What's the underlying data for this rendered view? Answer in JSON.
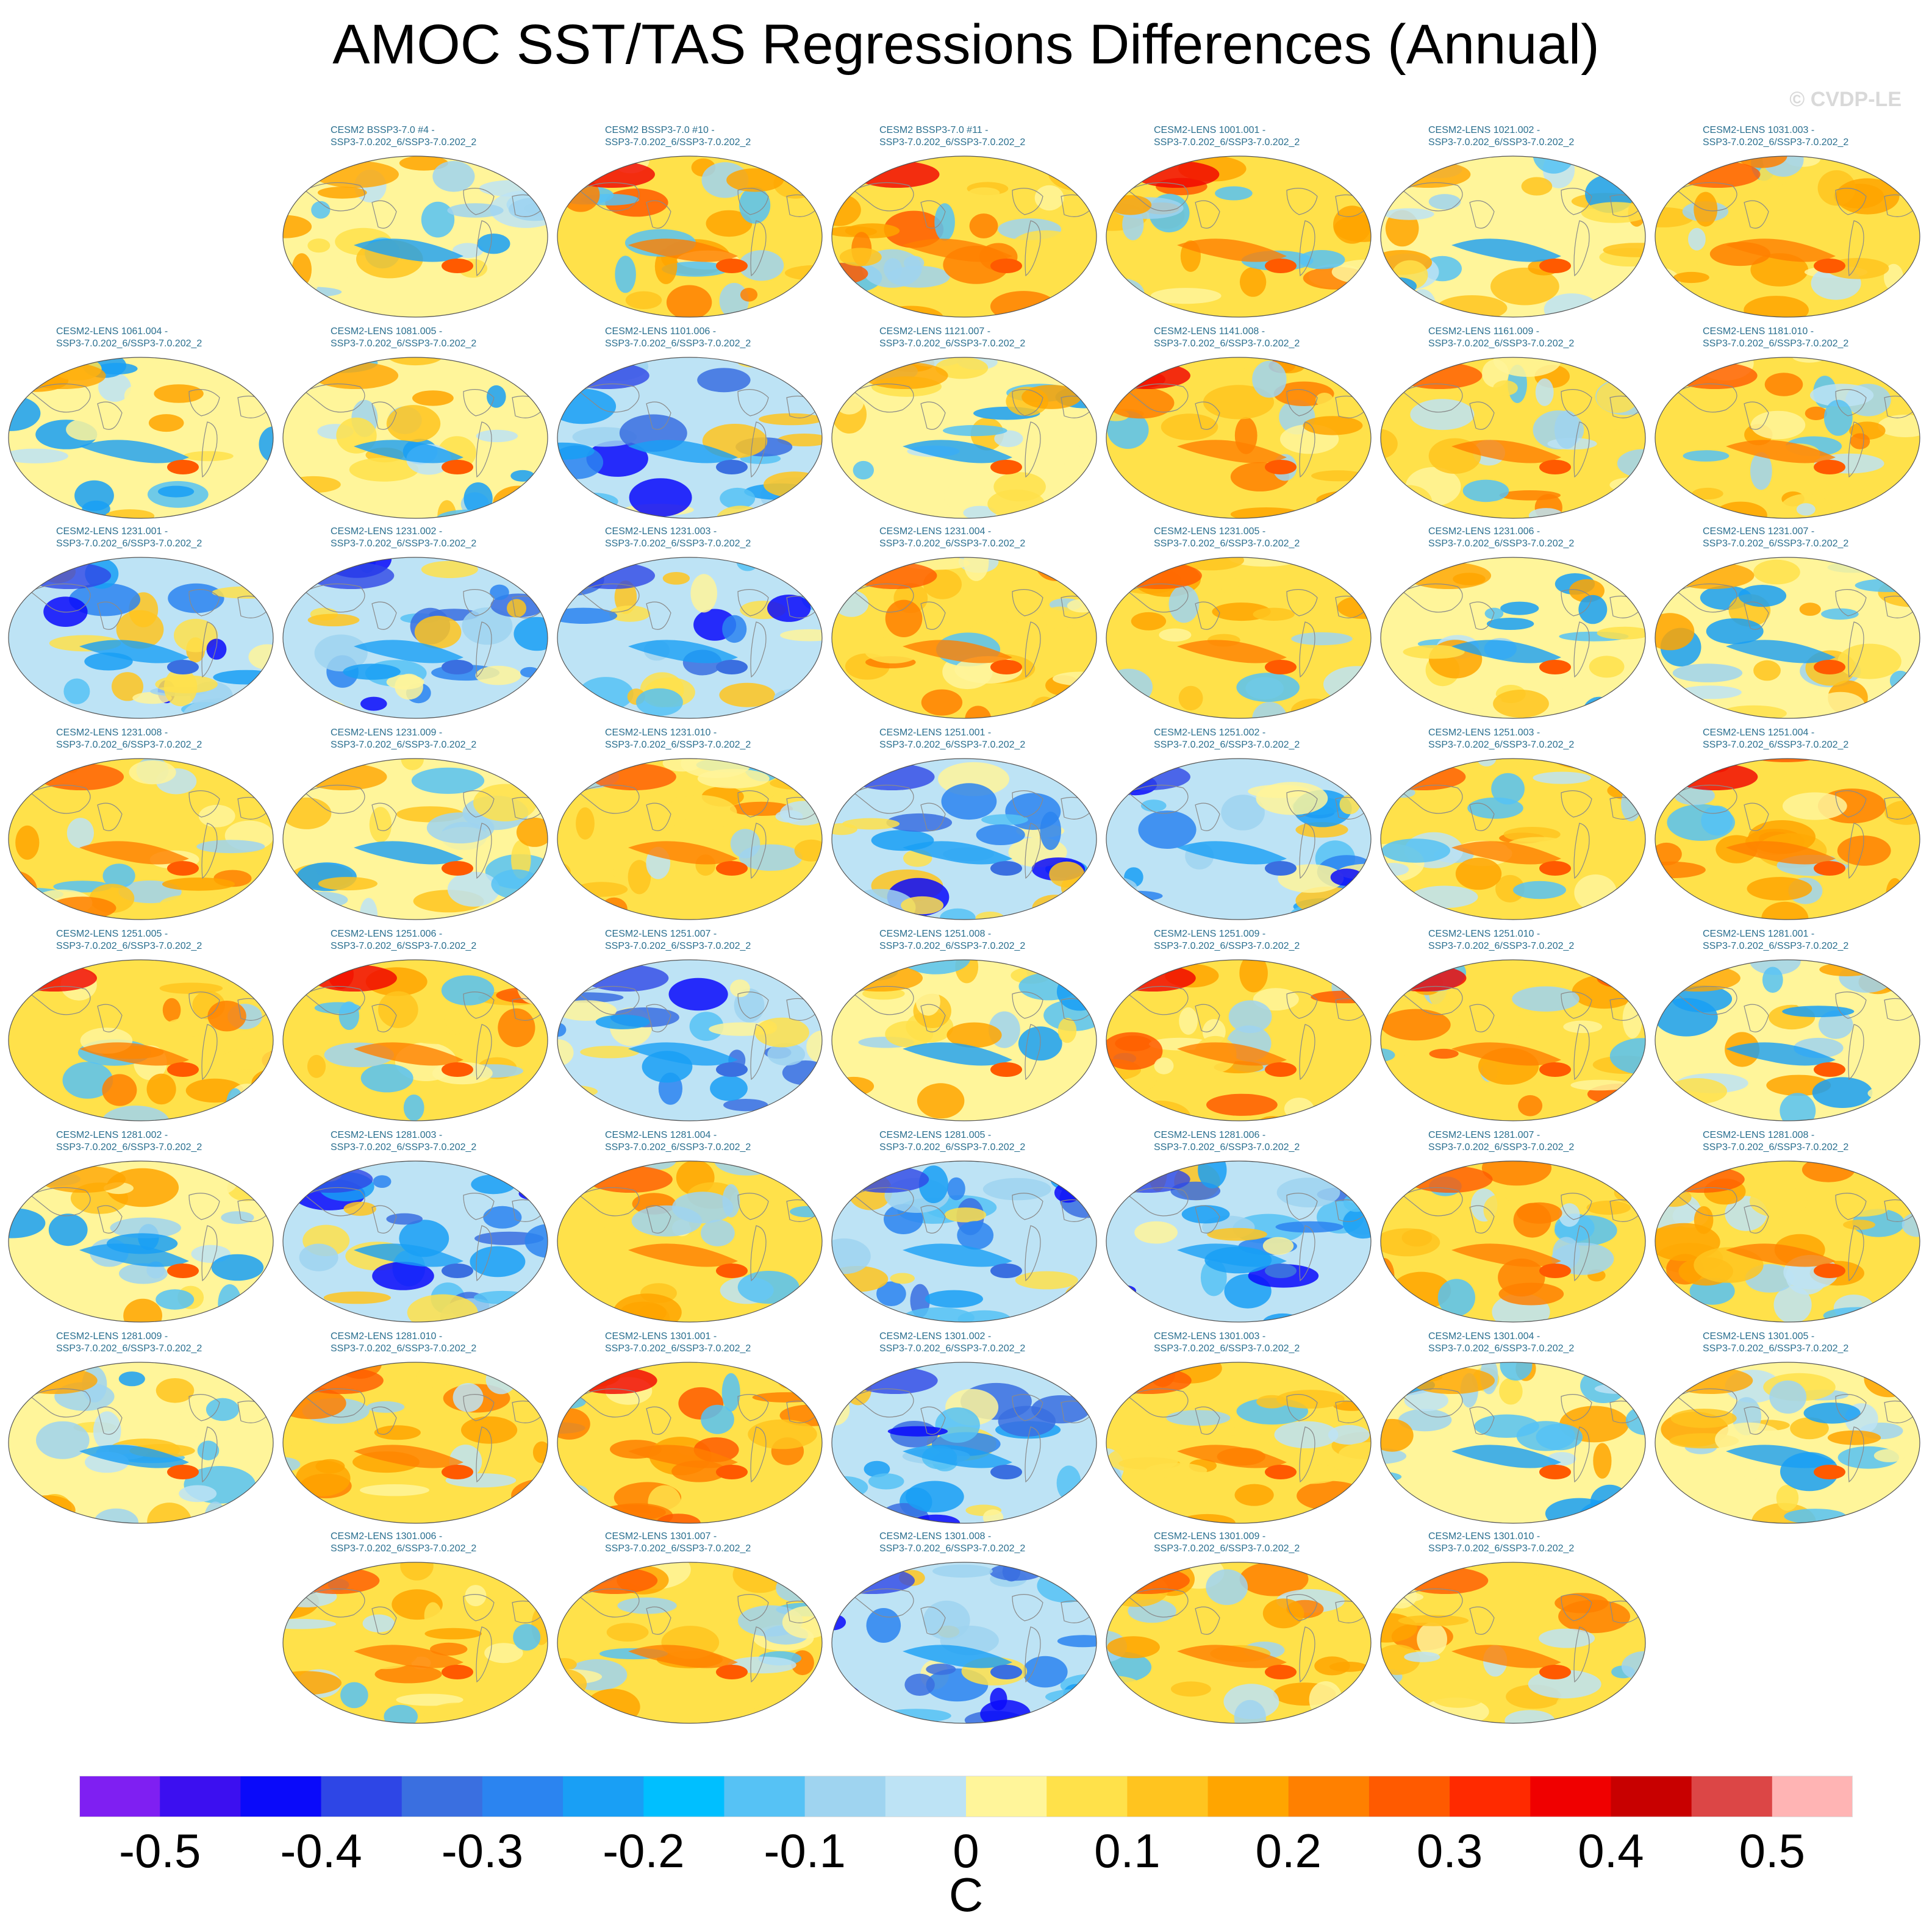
{
  "title": "AMOC SST/TAS Regressions Differences (Annual)",
  "copyright": "© CVDP-LE",
  "chart_data": {
    "type": "heatmap",
    "projection": "Robinson (global maps)",
    "variable_units": "C",
    "colorbar": {
      "ticks": [
        "-0.5",
        "-0.4",
        "-0.3",
        "-0.2",
        "-0.1",
        "0",
        "0.1",
        "0.2",
        "0.3",
        "0.4",
        "0.5"
      ],
      "levels": [
        -0.55,
        -0.5,
        -0.45,
        -0.4,
        -0.35,
        -0.3,
        -0.25,
        -0.2,
        -0.15,
        -0.1,
        -0.05,
        0,
        0.05,
        0.1,
        0.15,
        0.2,
        0.25,
        0.3,
        0.35,
        0.4,
        0.45,
        0.5,
        0.55
      ],
      "colors": [
        "#7f1ff2",
        "#3c0ff0",
        "#0a0afa",
        "#2e46e6",
        "#3a6fe0",
        "#2b84f0",
        "#199ff5",
        "#00bfff",
        "#56c2f5",
        "#9fd4f0",
        "#bde3f5",
        "#fff59a",
        "#ffe14a",
        "#ffc41f",
        "#ffa500",
        "#ff8000",
        "#ff5a00",
        "#ff2a00",
        "#f00000",
        "#c80000",
        "#dc4646",
        "#ffb4b4"
      ]
    },
    "panels": [
      {
        "l1": "CESM2 BSSP3-7.0 #4 -",
        "l2": "SSP3-7.0.202_6/SSP3-7.0.202_2",
        "pattern": 1
      },
      {
        "l1": "CESM2 BSSP3-7.0 #10 -",
        "l2": "SSP3-7.0.202_6/SSP3-7.0.202_2",
        "pattern": 2
      },
      {
        "l1": "CESM2 BSSP3-7.0 #11 -",
        "l2": "SSP3-7.0.202_6/SSP3-7.0.202_2",
        "pattern": 2
      },
      {
        "l1": "CESM2-LENS 1001.001 -",
        "l2": "SSP3-7.0.202_6/SSP3-7.0.202_2",
        "pattern": 2
      },
      {
        "l1": "CESM2-LENS 1021.002 -",
        "l2": "SSP3-7.0.202_6/SSP3-7.0.202_2",
        "pattern": 1
      },
      {
        "l1": "CESM2-LENS 1031.003 -",
        "l2": "SSP3-7.0.202_6/SSP3-7.0.202_2",
        "pattern": 3
      },
      {
        "l1": "CESM2-LENS 1061.004 -",
        "l2": "SSP3-7.0.202_6/SSP3-7.0.202_2",
        "pattern": 1
      },
      {
        "l1": "CESM2-LENS 1081.005 -",
        "l2": "SSP3-7.0.202_6/SSP3-7.0.202_2",
        "pattern": 1
      },
      {
        "l1": "CESM2-LENS 1101.006 -",
        "l2": "SSP3-7.0.202_6/SSP3-7.0.202_2",
        "pattern": 0
      },
      {
        "l1": "CESM2-LENS 1121.007 -",
        "l2": "SSP3-7.0.202_6/SSP3-7.0.202_2",
        "pattern": 1
      },
      {
        "l1": "CESM2-LENS 1141.008 -",
        "l2": "SSP3-7.0.202_6/SSP3-7.0.202_2",
        "pattern": 2
      },
      {
        "l1": "CESM2-LENS 1161.009 -",
        "l2": "SSP3-7.0.202_6/SSP3-7.0.202_2",
        "pattern": 3
      },
      {
        "l1": "CESM2-LENS 1181.010 -",
        "l2": "SSP3-7.0.202_6/SSP3-7.0.202_2",
        "pattern": 3
      },
      {
        "l1": "CESM2-LENS 1231.001 -",
        "l2": "SSP3-7.0.202_6/SSP3-7.0.202_2",
        "pattern": 0
      },
      {
        "l1": "CESM2-LENS 1231.002 -",
        "l2": "SSP3-7.0.202_6/SSP3-7.0.202_2",
        "pattern": 0
      },
      {
        "l1": "CESM2-LENS 1231.003 -",
        "l2": "SSP3-7.0.202_6/SSP3-7.0.202_2",
        "pattern": 0
      },
      {
        "l1": "CESM2-LENS 1231.004 -",
        "l2": "SSP3-7.0.202_6/SSP3-7.0.202_2",
        "pattern": 3
      },
      {
        "l1": "CESM2-LENS 1231.005 -",
        "l2": "SSP3-7.0.202_6/SSP3-7.0.202_2",
        "pattern": 3
      },
      {
        "l1": "CESM2-LENS 1231.006 -",
        "l2": "SSP3-7.0.202_6/SSP3-7.0.202_2",
        "pattern": 1
      },
      {
        "l1": "CESM2-LENS 1231.007 -",
        "l2": "SSP3-7.0.202_6/SSP3-7.0.202_2",
        "pattern": 1
      },
      {
        "l1": "CESM2-LENS 1231.008 -",
        "l2": "SSP3-7.0.202_6/SSP3-7.0.202_2",
        "pattern": 3
      },
      {
        "l1": "CESM2-LENS 1231.009 -",
        "l2": "SSP3-7.0.202_6/SSP3-7.0.202_2",
        "pattern": 1
      },
      {
        "l1": "CESM2-LENS 1231.010 -",
        "l2": "SSP3-7.0.202_6/SSP3-7.0.202_2",
        "pattern": 3
      },
      {
        "l1": "CESM2-LENS 1251.001 -",
        "l2": "SSP3-7.0.202_6/SSP3-7.0.202_2",
        "pattern": 0
      },
      {
        "l1": "CESM2-LENS 1251.002 -",
        "l2": "SSP3-7.0.202_6/SSP3-7.0.202_2",
        "pattern": 0
      },
      {
        "l1": "CESM2-LENS 1251.003 -",
        "l2": "SSP3-7.0.202_6/SSP3-7.0.202_2",
        "pattern": 3
      },
      {
        "l1": "CESM2-LENS 1251.004 -",
        "l2": "SSP3-7.0.202_6/SSP3-7.0.202_2",
        "pattern": 2
      },
      {
        "l1": "CESM2-LENS 1251.005 -",
        "l2": "SSP3-7.0.202_6/SSP3-7.0.202_2",
        "pattern": 2
      },
      {
        "l1": "CESM2-LENS 1251.006 -",
        "l2": "SSP3-7.0.202_6/SSP3-7.0.202_2",
        "pattern": 2
      },
      {
        "l1": "CESM2-LENS 1251.007 -",
        "l2": "SSP3-7.0.202_6/SSP3-7.0.202_2",
        "pattern": 0
      },
      {
        "l1": "CESM2-LENS 1251.008 -",
        "l2": "SSP3-7.0.202_6/SSP3-7.0.202_2",
        "pattern": 1
      },
      {
        "l1": "CESM2-LENS 1251.009 -",
        "l2": "SSP3-7.0.202_6/SSP3-7.0.202_2",
        "pattern": 2
      },
      {
        "l1": "CESM2-LENS 1251.010 -",
        "l2": "SSP3-7.0.202_6/SSP3-7.0.202_2",
        "pattern": 2
      },
      {
        "l1": "CESM2-LENS 1281.001 -",
        "l2": "SSP3-7.0.202_6/SSP3-7.0.202_2",
        "pattern": 1
      },
      {
        "l1": "CESM2-LENS 1281.002 -",
        "l2": "SSP3-7.0.202_6/SSP3-7.0.202_2",
        "pattern": 1
      },
      {
        "l1": "CESM2-LENS 1281.003 -",
        "l2": "SSP3-7.0.202_6/SSP3-7.0.202_2",
        "pattern": 0
      },
      {
        "l1": "CESM2-LENS 1281.004 -",
        "l2": "SSP3-7.0.202_6/SSP3-7.0.202_2",
        "pattern": 3
      },
      {
        "l1": "CESM2-LENS 1281.005 -",
        "l2": "SSP3-7.0.202_6/SSP3-7.0.202_2",
        "pattern": 0
      },
      {
        "l1": "CESM2-LENS 1281.006 -",
        "l2": "SSP3-7.0.202_6/SSP3-7.0.202_2",
        "pattern": 0
      },
      {
        "l1": "CESM2-LENS 1281.007 -",
        "l2": "SSP3-7.0.202_6/SSP3-7.0.202_2",
        "pattern": 3
      },
      {
        "l1": "CESM2-LENS 1281.008 -",
        "l2": "SSP3-7.0.202_6/SSP3-7.0.202_2",
        "pattern": 3
      },
      {
        "l1": "CESM2-LENS 1281.009 -",
        "l2": "SSP3-7.0.202_6/SSP3-7.0.202_2",
        "pattern": 1
      },
      {
        "l1": "CESM2-LENS 1281.010 -",
        "l2": "SSP3-7.0.202_6/SSP3-7.0.202_2",
        "pattern": 3
      },
      {
        "l1": "CESM2-LENS 1301.001 -",
        "l2": "SSP3-7.0.202_6/SSP3-7.0.202_2",
        "pattern": 2
      },
      {
        "l1": "CESM2-LENS 1301.002 -",
        "l2": "SSP3-7.0.202_6/SSP3-7.0.202_2",
        "pattern": 0
      },
      {
        "l1": "CESM2-LENS 1301.003 -",
        "l2": "SSP3-7.0.202_6/SSP3-7.0.202_2",
        "pattern": 3
      },
      {
        "l1": "CESM2-LENS 1301.004 -",
        "l2": "SSP3-7.0.202_6/SSP3-7.0.202_2",
        "pattern": 1
      },
      {
        "l1": "CESM2-LENS 1301.005 -",
        "l2": "SSP3-7.0.202_6/SSP3-7.0.202_2",
        "pattern": 1
      },
      {
        "l1": "CESM2-LENS 1301.006 -",
        "l2": "SSP3-7.0.202_6/SSP3-7.0.202_2",
        "pattern": 3
      },
      {
        "l1": "CESM2-LENS 1301.007 -",
        "l2": "SSP3-7.0.202_6/SSP3-7.0.202_2",
        "pattern": 3
      },
      {
        "l1": "CESM2-LENS 1301.008 -",
        "l2": "SSP3-7.0.202_6/SSP3-7.0.202_2",
        "pattern": 0
      },
      {
        "l1": "CESM2-LENS 1301.009 -",
        "l2": "SSP3-7.0.202_6/SSP3-7.0.202_2",
        "pattern": 3
      },
      {
        "l1": "CESM2-LENS 1301.010 -",
        "l2": "SSP3-7.0.202_6/SSP3-7.0.202_2",
        "pattern": 3
      }
    ]
  }
}
